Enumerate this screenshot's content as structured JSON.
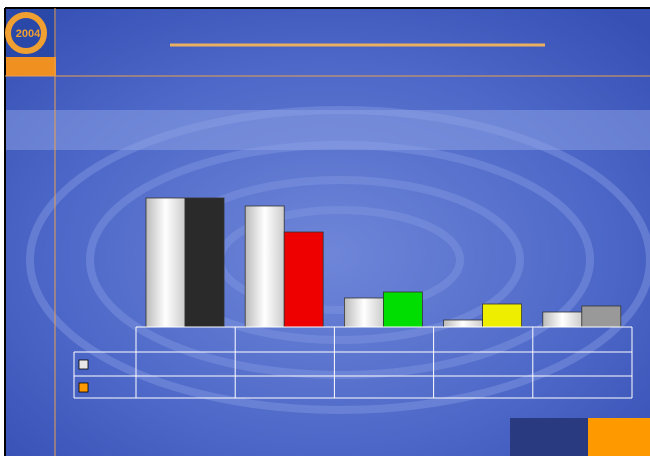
{
  "logo": {
    "text": "2004"
  },
  "chart_data": {
    "type": "bar",
    "categories": [
      null,
      null,
      null,
      null,
      null
    ],
    "series": [
      {
        "color": "#e8e8e8",
        "values": [
          129,
          121,
          29,
          7,
          15
        ]
      },
      {
        "color": "#ff9900",
        "colors": [
          "#2a2a2a",
          "#ee0000",
          "#00dd00",
          "#eeee00",
          "#999999"
        ],
        "values": [
          129,
          95,
          35,
          23,
          21
        ]
      }
    ],
    "ylim": [
      0,
      130
    ]
  }
}
